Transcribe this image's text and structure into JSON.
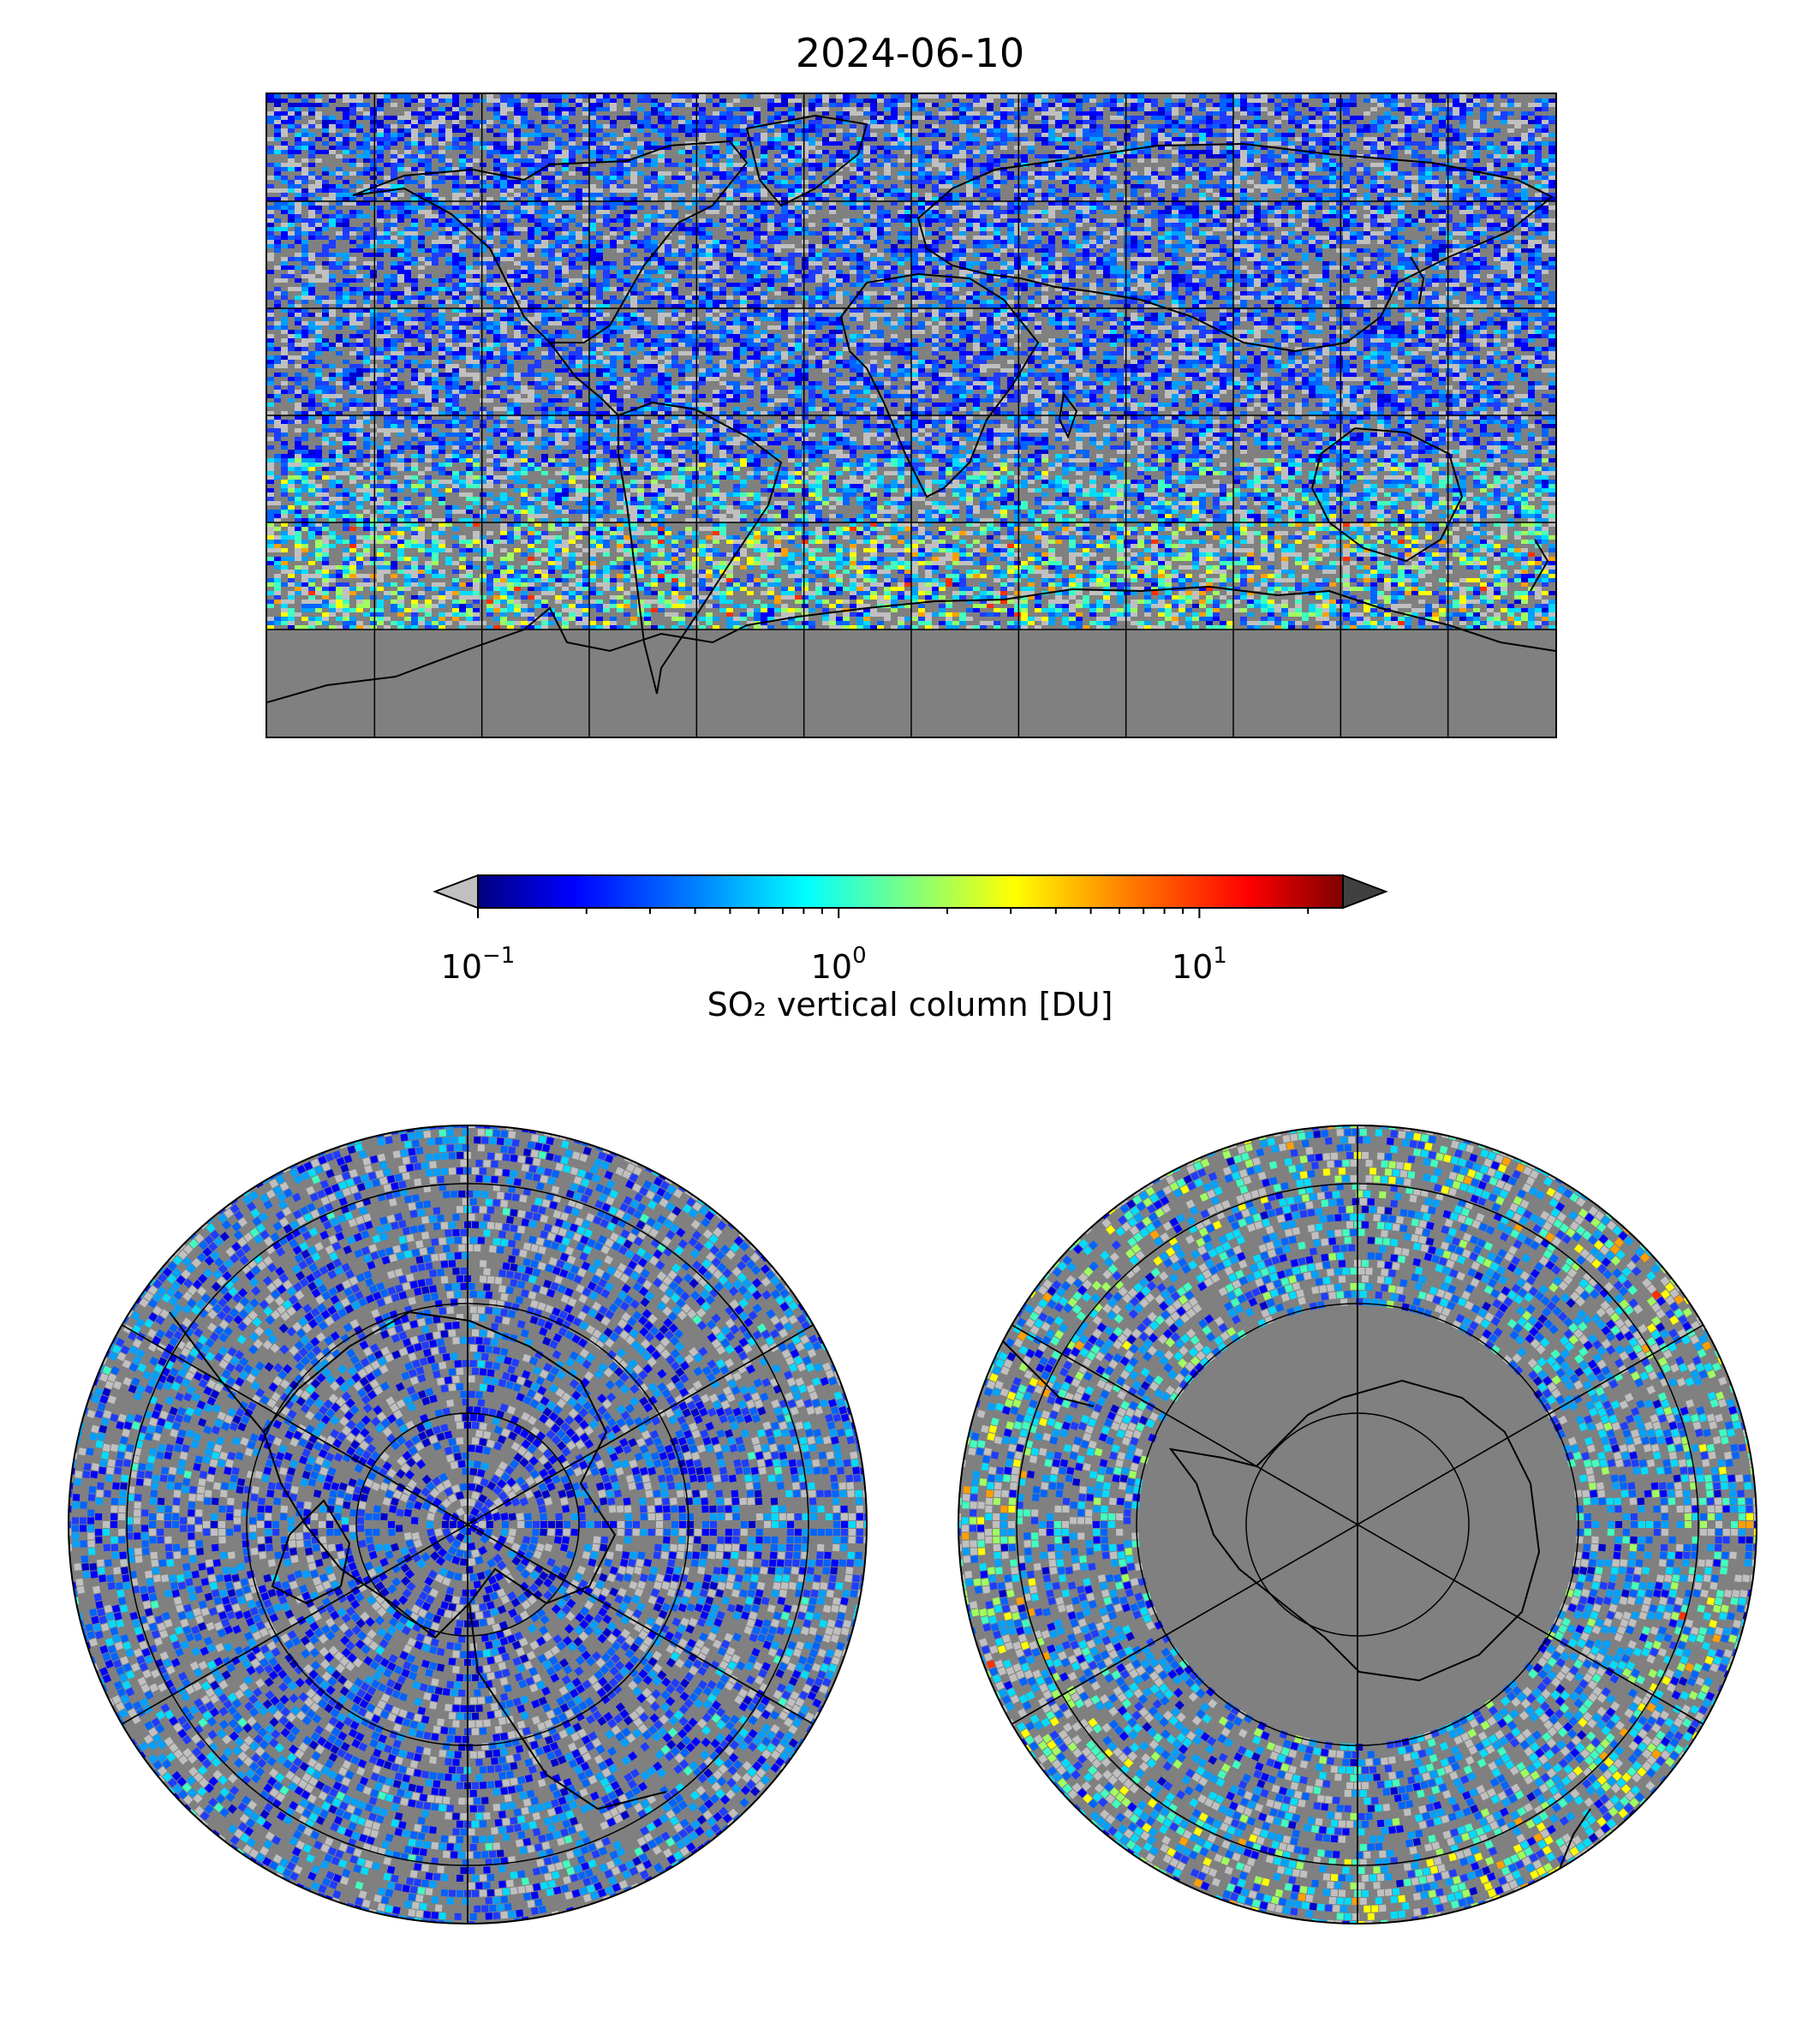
{
  "title": "2024-06-10",
  "colorbar": {
    "label": "SO₂ vertical column [DU]",
    "scale": "log",
    "range": [
      0.1,
      25
    ],
    "extend": "both",
    "under_color": "#c0c0c0",
    "over_color": "#404040",
    "colormap": [
      "#00007f",
      "#0000ff",
      "#007fff",
      "#00ffff",
      "#7fff7f",
      "#ffff00",
      "#ff7f00",
      "#ff0000",
      "#7f0000"
    ],
    "ticks": [
      {
        "base": "10",
        "exp": "−1",
        "value": 0.1
      },
      {
        "base": "10",
        "exp": "0",
        "value": 1
      },
      {
        "base": "10",
        "exp": "1",
        "value": 10
      }
    ]
  },
  "colors": {
    "no_data": "#808080",
    "below_range": "#c0c0c0",
    "coastline": "#000000",
    "grid": "#000000"
  },
  "maps": [
    {
      "name": "global",
      "projection": "plate-carree",
      "grid": true,
      "meridian_step_deg": 30,
      "parallel_step_deg": 30
    },
    {
      "name": "north-polar",
      "projection": "north-polar-stereographic",
      "grid": true
    },
    {
      "name": "south-polar",
      "projection": "south-polar-stereographic",
      "grid": true
    }
  ]
}
